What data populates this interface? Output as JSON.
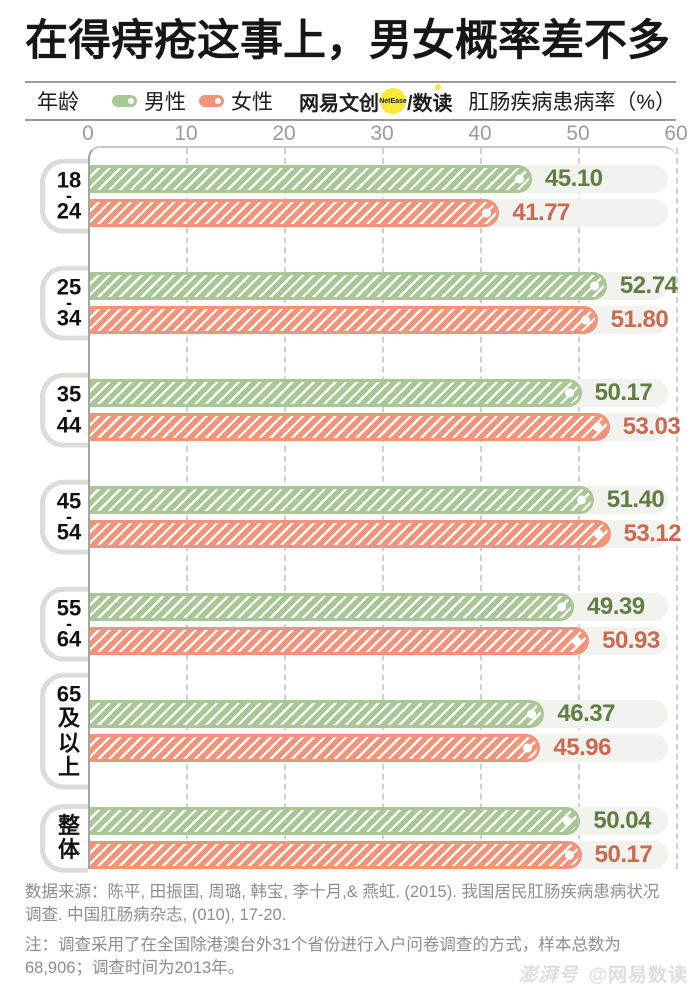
{
  "title": "在得痔疮这事上，男女概率差不多",
  "legend": {
    "age_label": "年龄",
    "male_label": "男性",
    "female_label": "女性",
    "brand_part1": "网易文创",
    "brand_badge": "NetEase",
    "brand_part2": "/数读",
    "axis_title": "肛肠疾病患病率（%）"
  },
  "colors": {
    "male_bar": "#a9c796",
    "male_text": "#5e7e44",
    "female_bar": "#f2947a",
    "female_text": "#cb6a50",
    "track": "#f2f2ee",
    "brand_yellow": "#f8e838",
    "stripe": "#ffffff"
  },
  "chart_data": {
    "type": "bar",
    "orientation": "horizontal",
    "title": "在得痔疮这事上，男女概率差不多",
    "xlabel": "肛肠疾病患病率（%）",
    "xlim": [
      0,
      60
    ],
    "xticks": [
      0,
      10,
      20,
      30,
      40,
      50,
      60
    ],
    "grid": "dashed vertical",
    "legend_position": "top",
    "categories": [
      "18-24",
      "25-34",
      "35-44",
      "45-54",
      "55-64",
      "65及以上",
      "整体"
    ],
    "category_label_lines": [
      [
        "18",
        "-",
        "24"
      ],
      [
        "25",
        "-",
        "34"
      ],
      [
        "35",
        "-",
        "44"
      ],
      [
        "45",
        "-",
        "54"
      ],
      [
        "55",
        "-",
        "64"
      ],
      [
        "65及",
        "以上"
      ],
      [
        "整体"
      ]
    ],
    "series": [
      {
        "name": "男性",
        "values": [
          45.1,
          52.74,
          50.17,
          51.4,
          49.39,
          46.37,
          50.04
        ]
      },
      {
        "name": "女性",
        "values": [
          41.77,
          51.8,
          53.03,
          53.12,
          50.93,
          45.96,
          50.17
        ]
      }
    ]
  },
  "footer": {
    "source_lines": [
      "数据来源：陈平, 田振国, 周璐, 韩宝, 李十月,& 燕虹. (2015). 我国居民肛肠疾病患病状况",
      "调查. 中国肛肠病杂志, (010), 17-20."
    ],
    "note_lines": [
      "注：调查采用了在全国除港澳台外31个省份进行入户问卷调查的方式，样本总数为",
      "68,906；调查时间为2013年。"
    ],
    "watermark_brand": "澎湃号",
    "watermark_handle": "@网易数读"
  }
}
